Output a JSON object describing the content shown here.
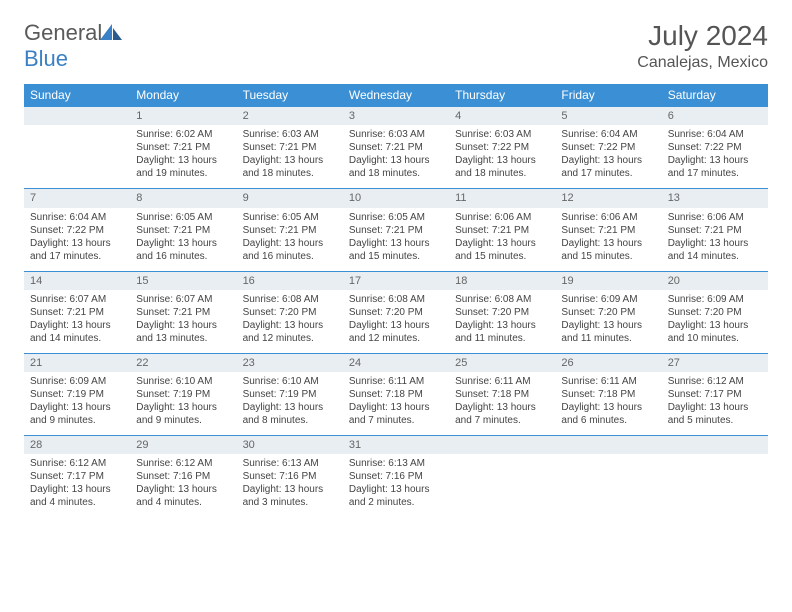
{
  "logo": {
    "text1": "General",
    "text2": "Blue"
  },
  "title": "July 2024",
  "location": "Canalejas, Mexico",
  "colors": {
    "header_bg": "#3b8fd4",
    "header_text": "#ffffff",
    "daynum_bg": "#e8eef2",
    "border": "#3b8fd4",
    "logo_gray": "#5a5a5a",
    "logo_blue": "#3b7fc4"
  },
  "weekdays": [
    "Sunday",
    "Monday",
    "Tuesday",
    "Wednesday",
    "Thursday",
    "Friday",
    "Saturday"
  ],
  "weeks": [
    [
      null,
      {
        "n": "1",
        "sr": "Sunrise: 6:02 AM",
        "ss": "Sunset: 7:21 PM",
        "d1": "Daylight: 13 hours",
        "d2": "and 19 minutes."
      },
      {
        "n": "2",
        "sr": "Sunrise: 6:03 AM",
        "ss": "Sunset: 7:21 PM",
        "d1": "Daylight: 13 hours",
        "d2": "and 18 minutes."
      },
      {
        "n": "3",
        "sr": "Sunrise: 6:03 AM",
        "ss": "Sunset: 7:21 PM",
        "d1": "Daylight: 13 hours",
        "d2": "and 18 minutes."
      },
      {
        "n": "4",
        "sr": "Sunrise: 6:03 AM",
        "ss": "Sunset: 7:22 PM",
        "d1": "Daylight: 13 hours",
        "d2": "and 18 minutes."
      },
      {
        "n": "5",
        "sr": "Sunrise: 6:04 AM",
        "ss": "Sunset: 7:22 PM",
        "d1": "Daylight: 13 hours",
        "d2": "and 17 minutes."
      },
      {
        "n": "6",
        "sr": "Sunrise: 6:04 AM",
        "ss": "Sunset: 7:22 PM",
        "d1": "Daylight: 13 hours",
        "d2": "and 17 minutes."
      }
    ],
    [
      {
        "n": "7",
        "sr": "Sunrise: 6:04 AM",
        "ss": "Sunset: 7:22 PM",
        "d1": "Daylight: 13 hours",
        "d2": "and 17 minutes."
      },
      {
        "n": "8",
        "sr": "Sunrise: 6:05 AM",
        "ss": "Sunset: 7:21 PM",
        "d1": "Daylight: 13 hours",
        "d2": "and 16 minutes."
      },
      {
        "n": "9",
        "sr": "Sunrise: 6:05 AM",
        "ss": "Sunset: 7:21 PM",
        "d1": "Daylight: 13 hours",
        "d2": "and 16 minutes."
      },
      {
        "n": "10",
        "sr": "Sunrise: 6:05 AM",
        "ss": "Sunset: 7:21 PM",
        "d1": "Daylight: 13 hours",
        "d2": "and 15 minutes."
      },
      {
        "n": "11",
        "sr": "Sunrise: 6:06 AM",
        "ss": "Sunset: 7:21 PM",
        "d1": "Daylight: 13 hours",
        "d2": "and 15 minutes."
      },
      {
        "n": "12",
        "sr": "Sunrise: 6:06 AM",
        "ss": "Sunset: 7:21 PM",
        "d1": "Daylight: 13 hours",
        "d2": "and 15 minutes."
      },
      {
        "n": "13",
        "sr": "Sunrise: 6:06 AM",
        "ss": "Sunset: 7:21 PM",
        "d1": "Daylight: 13 hours",
        "d2": "and 14 minutes."
      }
    ],
    [
      {
        "n": "14",
        "sr": "Sunrise: 6:07 AM",
        "ss": "Sunset: 7:21 PM",
        "d1": "Daylight: 13 hours",
        "d2": "and 14 minutes."
      },
      {
        "n": "15",
        "sr": "Sunrise: 6:07 AM",
        "ss": "Sunset: 7:21 PM",
        "d1": "Daylight: 13 hours",
        "d2": "and 13 minutes."
      },
      {
        "n": "16",
        "sr": "Sunrise: 6:08 AM",
        "ss": "Sunset: 7:20 PM",
        "d1": "Daylight: 13 hours",
        "d2": "and 12 minutes."
      },
      {
        "n": "17",
        "sr": "Sunrise: 6:08 AM",
        "ss": "Sunset: 7:20 PM",
        "d1": "Daylight: 13 hours",
        "d2": "and 12 minutes."
      },
      {
        "n": "18",
        "sr": "Sunrise: 6:08 AM",
        "ss": "Sunset: 7:20 PM",
        "d1": "Daylight: 13 hours",
        "d2": "and 11 minutes."
      },
      {
        "n": "19",
        "sr": "Sunrise: 6:09 AM",
        "ss": "Sunset: 7:20 PM",
        "d1": "Daylight: 13 hours",
        "d2": "and 11 minutes."
      },
      {
        "n": "20",
        "sr": "Sunrise: 6:09 AM",
        "ss": "Sunset: 7:20 PM",
        "d1": "Daylight: 13 hours",
        "d2": "and 10 minutes."
      }
    ],
    [
      {
        "n": "21",
        "sr": "Sunrise: 6:09 AM",
        "ss": "Sunset: 7:19 PM",
        "d1": "Daylight: 13 hours",
        "d2": "and 9 minutes."
      },
      {
        "n": "22",
        "sr": "Sunrise: 6:10 AM",
        "ss": "Sunset: 7:19 PM",
        "d1": "Daylight: 13 hours",
        "d2": "and 9 minutes."
      },
      {
        "n": "23",
        "sr": "Sunrise: 6:10 AM",
        "ss": "Sunset: 7:19 PM",
        "d1": "Daylight: 13 hours",
        "d2": "and 8 minutes."
      },
      {
        "n": "24",
        "sr": "Sunrise: 6:11 AM",
        "ss": "Sunset: 7:18 PM",
        "d1": "Daylight: 13 hours",
        "d2": "and 7 minutes."
      },
      {
        "n": "25",
        "sr": "Sunrise: 6:11 AM",
        "ss": "Sunset: 7:18 PM",
        "d1": "Daylight: 13 hours",
        "d2": "and 7 minutes."
      },
      {
        "n": "26",
        "sr": "Sunrise: 6:11 AM",
        "ss": "Sunset: 7:18 PM",
        "d1": "Daylight: 13 hours",
        "d2": "and 6 minutes."
      },
      {
        "n": "27",
        "sr": "Sunrise: 6:12 AM",
        "ss": "Sunset: 7:17 PM",
        "d1": "Daylight: 13 hours",
        "d2": "and 5 minutes."
      }
    ],
    [
      {
        "n": "28",
        "sr": "Sunrise: 6:12 AM",
        "ss": "Sunset: 7:17 PM",
        "d1": "Daylight: 13 hours",
        "d2": "and 4 minutes."
      },
      {
        "n": "29",
        "sr": "Sunrise: 6:12 AM",
        "ss": "Sunset: 7:16 PM",
        "d1": "Daylight: 13 hours",
        "d2": "and 4 minutes."
      },
      {
        "n": "30",
        "sr": "Sunrise: 6:13 AM",
        "ss": "Sunset: 7:16 PM",
        "d1": "Daylight: 13 hours",
        "d2": "and 3 minutes."
      },
      {
        "n": "31",
        "sr": "Sunrise: 6:13 AM",
        "ss": "Sunset: 7:16 PM",
        "d1": "Daylight: 13 hours",
        "d2": "and 2 minutes."
      },
      null,
      null,
      null
    ]
  ]
}
